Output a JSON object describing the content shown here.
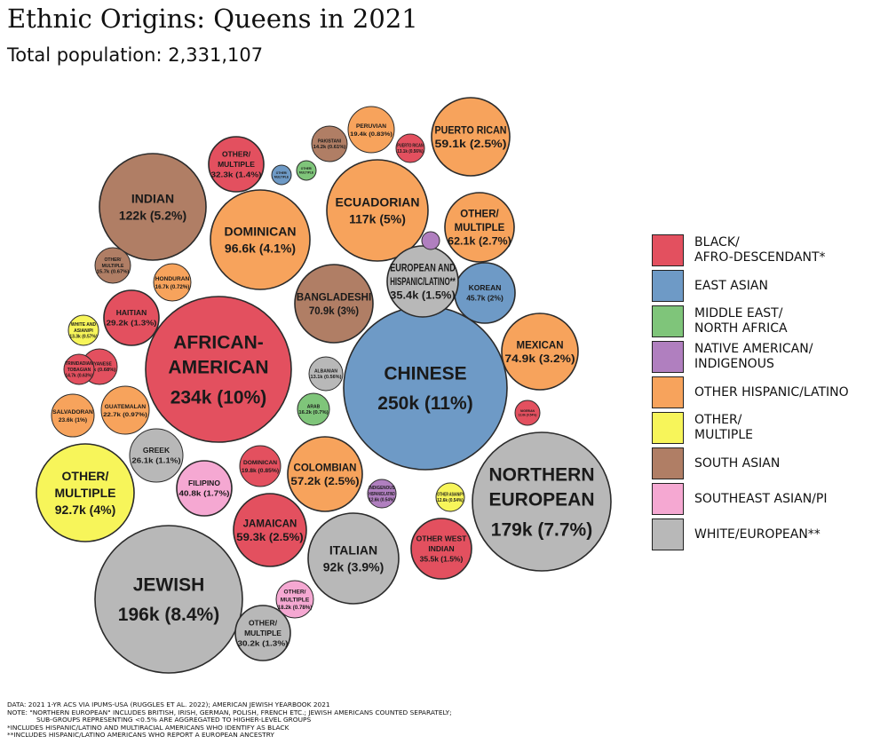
{
  "title": "Ethnic Origins: Queens in 2021",
  "subtitle": "Total population: 2,331,107",
  "colors": {
    "black": "#e3505f",
    "east_asian": "#6e9ac6",
    "mena": "#7fc57a",
    "native": "#b07fbf",
    "hispanic": "#f7a35c",
    "other": "#f7f55a",
    "south_asian": "#b07e65",
    "se_asian": "#f5a8d2",
    "white": "#b8b8b8"
  },
  "legend": [
    {
      "key": "black",
      "label": "BLACK/\nAFRO-DESCENDANT*"
    },
    {
      "key": "east_asian",
      "label": "EAST ASIAN"
    },
    {
      "key": "mena",
      "label": "MIDDLE EAST/\nNORTH AFRICA"
    },
    {
      "key": "native",
      "label": "NATIVE AMERICAN/\nINDIGENOUS"
    },
    {
      "key": "hispanic",
      "label": "OTHER HISPANIC/LATINO"
    },
    {
      "key": "other",
      "label": "OTHER/\nMULTIPLE"
    },
    {
      "key": "south_asian",
      "label": "SOUTH ASIAN"
    },
    {
      "key": "se_asian",
      "label": "SOUTHEAST ASIAN/PI"
    },
    {
      "key": "white",
      "label": "WHITE/EUROPEAN**"
    }
  ],
  "chart_data": {
    "type": "bubble",
    "title": "Ethnic Origins: Queens in 2021",
    "subtitle": "Total population: 2,331,107",
    "bubbles": [
      {
        "label": "CHINESE",
        "value_label": "250k (11%)",
        "value": 250000,
        "group": "east_asian"
      },
      {
        "label": "AFRICAN-\nAMERICAN",
        "value_label": "234k (10%)",
        "value": 234000,
        "group": "black"
      },
      {
        "label": "JEWISH",
        "value_label": "196k (8.4%)",
        "value": 196000,
        "group": "white"
      },
      {
        "label": "NORTHERN\nEUROPEAN",
        "value_label": "179k (7.7%)",
        "value": 179000,
        "group": "white"
      },
      {
        "label": "INDIAN",
        "value_label": "122k (5.2%)",
        "value": 122000,
        "group": "south_asian"
      },
      {
        "label": "ECUADORIAN",
        "value_label": "117k (5%)",
        "value": 117000,
        "group": "hispanic"
      },
      {
        "label": "DOMINICAN",
        "value_label": "96.6k (4.1%)",
        "value": 96600,
        "group": "hispanic"
      },
      {
        "label": "OTHER/\nMULTIPLE",
        "value_label": "92.7k (4%)",
        "value": 92700,
        "group": "other"
      },
      {
        "label": "ITALIAN",
        "value_label": "92k (3.9%)",
        "value": 92000,
        "group": "white"
      },
      {
        "label": "MEXICAN",
        "value_label": "74.9k (3.2%)",
        "value": 74900,
        "group": "hispanic"
      },
      {
        "label": "BANGLADESHI",
        "value_label": "70.9k (3%)",
        "value": 70900,
        "group": "south_asian"
      },
      {
        "label": "OTHER/\nMULTIPLE",
        "value_label": "62.1k (2.7%)",
        "value": 62100,
        "group": "hispanic"
      },
      {
        "label": "PUERTO RICAN",
        "value_label": "59.1k (2.5%)",
        "value": 59100,
        "group": "hispanic"
      },
      {
        "label": "JAMAICAN",
        "value_label": "59.3k (2.5%)",
        "value": 59300,
        "group": "black"
      },
      {
        "label": "COLOMBIAN",
        "value_label": "57.2k (2.5%)",
        "value": 57200,
        "group": "hispanic"
      },
      {
        "label": "KOREAN",
        "value_label": "45.7k (2%)",
        "value": 45700,
        "group": "east_asian"
      },
      {
        "label": "FILIPINO",
        "value_label": "40.8k (1.7%)",
        "value": 40800,
        "group": "se_asian"
      },
      {
        "label": "EUROPEAN AND\nHISPANIC/LATINO**",
        "value_label": "35.4k (1.5%)",
        "value": 35400,
        "group": "white"
      },
      {
        "label": "OTHER WEST\nINDIAN",
        "value_label": "35.5k (1.5%)",
        "value": 35500,
        "group": "black"
      },
      {
        "label": "OTHER/\nMULTIPLE",
        "value_label": "32.3k (1.4%)",
        "value": 32300,
        "group": "black"
      },
      {
        "label": "OTHER/\nMULTIPLE",
        "value_label": "30.2k (1.3%)",
        "value": 30200,
        "group": "white"
      },
      {
        "label": "HAITIAN",
        "value_label": "29.2k (1.3%)",
        "value": 29200,
        "group": "black"
      },
      {
        "label": "GREEK",
        "value_label": "26.1k (1.1%)",
        "value": 26100,
        "group": "white"
      },
      {
        "label": "SALVADORAN",
        "value_label": "23.6k (1%)",
        "value": 23600,
        "group": "hispanic"
      },
      {
        "label": "GUATEMALAN",
        "value_label": "22.7k (0.97%)",
        "value": 22700,
        "group": "hispanic"
      },
      {
        "label": "PERUVIAN",
        "value_label": "19.4k (0.83%)",
        "value": 19400,
        "group": "hispanic"
      },
      {
        "label": "DOMINICAN",
        "value_label": "19.8k (0.85%)",
        "value": 19800,
        "group": "black"
      },
      {
        "label": "OTHER/\nMULTIPLE",
        "value_label": "18.2k (0.78%)",
        "value": 18200,
        "group": "se_asian"
      },
      {
        "label": "HONDURAN",
        "value_label": "16.7k (0.72%)",
        "value": 16700,
        "group": "hispanic"
      },
      {
        "label": "ARAB",
        "value_label": "16.2k (0.7%)",
        "value": 16200,
        "group": "mena"
      },
      {
        "label": "OTHER/\nMULTIPLE",
        "value_label": "15.7k (0.67%)",
        "value": 15700,
        "group": "south_asian"
      },
      {
        "label": "GUYANESE",
        "value_label": "15.9k (0.68%)",
        "value": 15900,
        "group": "black"
      },
      {
        "label": "TRINIDADIAN\nTOBAGIAN",
        "value_label": "14.7k (0.63%)",
        "value": 14700,
        "group": "black"
      },
      {
        "label": "PAKISTANI",
        "value_label": "14.2k (0.61%)",
        "value": 14200,
        "group": "south_asian"
      },
      {
        "label": "WHITE AND\nASIAN/PI",
        "value_label": "13.3k (0.57%)",
        "value": 13300,
        "group": "other"
      },
      {
        "label": "ALBANIAN",
        "value_label": "13.1k (0.56%)",
        "value": 13100,
        "group": "white"
      },
      {
        "label": "PUERTO RICAN",
        "value_label": "13.1k (0.56%)",
        "value": 13100,
        "group": "black"
      },
      {
        "label": "NIGERIAN",
        "value_label": "12.6k (0.54%)",
        "value": 12600,
        "group": "black"
      },
      {
        "label": "INDIGENOUS\nHISPANIC/LATINO",
        "value_label": "12.6k (0.54%)",
        "value": 12600,
        "group": "native"
      },
      {
        "label": "OTHER ASIAN/PI",
        "value_label": "12.6k (0.54%)",
        "value": 12600,
        "group": "other"
      },
      {
        "label": "OTHER/\nMULTIPLE",
        "value_label": "",
        "value": 11000,
        "group": "east_asian"
      },
      {
        "label": "OTHER/\nMULTIPLE",
        "value_label": "",
        "value": 11000,
        "group": "mena"
      },
      {
        "label": "",
        "value_label": "",
        "value": 9000,
        "group": "native"
      }
    ]
  },
  "notes": [
    "DATA: 2021 1-YR ACS VIA IPUMS-USA (RUGGLES ET AL. 2022); AMERICAN JEWISH YEARBOOK 2021",
    "NOTE: \"NORTHERN EUROPEAN\" INCLUDES BRITISH, IRISH, GERMAN, POLISH, FRENCH ETC.; JEWISH AMERICANS COUNTED SEPARATELY;",
    "SUB-GROUPS REPRESENTING <0.5% ARE AGGREGATED TO HIGHER-LEVEL GROUPS",
    "*INCLUDES HISPANIC/LATINO AND MULTIRACIAL AMERICANS WHO IDENTIFY AS BLACK",
    "**INCLUDES HISPANIC/LATINO AMERICANS WHO REPORT A EUROPEAN ANCESTRY"
  ]
}
